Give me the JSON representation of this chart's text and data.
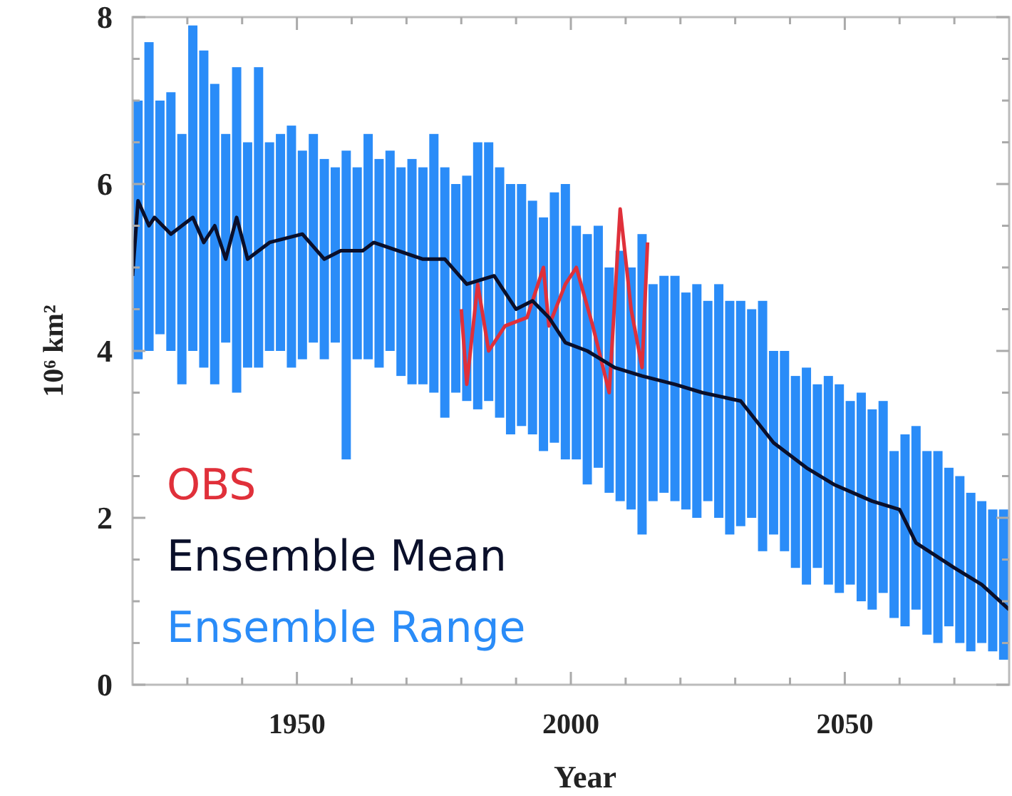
{
  "chart_data": {
    "type": "bar",
    "xlabel": "Year",
    "ylabel": "10⁶ km²",
    "xlim": [
      1920,
      2080
    ],
    "ylim": [
      0,
      8
    ],
    "xticks": [
      {
        "value": 1930,
        "label": null
      },
      {
        "value": 1940,
        "label": null
      },
      1950,
      {
        "value": 1960,
        "label": null
      },
      {
        "value": 1970,
        "label": null
      },
      {
        "value": 1980,
        "label": null
      },
      {
        "value": 1990,
        "label": null
      },
      2000,
      {
        "value": 2010,
        "label": null
      },
      {
        "value": 2020,
        "label": null
      },
      {
        "value": 2030,
        "label": null
      },
      {
        "value": 2040,
        "label": null
      },
      2050,
      {
        "value": 2060,
        "label": null
      },
      {
        "value": 2070,
        "label": null
      }
    ],
    "yticks": [
      0,
      {
        "value": 0.5,
        "label": null
      },
      {
        "value": 1,
        "label": null
      },
      {
        "value": 1.5,
        "label": null
      },
      2,
      {
        "value": 2.5,
        "label": null
      },
      {
        "value": 3,
        "label": null
      },
      {
        "value": 3.5,
        "label": null
      },
      4,
      {
        "value": 4.5,
        "label": null
      },
      {
        "value": 5,
        "label": null
      },
      {
        "value": 5.5,
        "label": null
      },
      6,
      {
        "value": 6.5,
        "label": null
      },
      {
        "value": 7,
        "label": null
      },
      {
        "value": 7.5,
        "label": null
      },
      8
    ],
    "grid": false,
    "legend": "bottom left",
    "series": [
      {
        "name": "OBS",
        "type": "line",
        "color": "#e0303a",
        "x": [
          1980,
          1981,
          1983,
          1985,
          1988,
          1992,
          1995,
          1996,
          1999,
          2001,
          2004,
          2007,
          2009,
          2011,
          2013,
          2014
        ],
        "values": [
          4.5,
          3.6,
          4.8,
          4.0,
          4.3,
          4.4,
          5.0,
          4.3,
          4.8,
          5.0,
          4.3,
          3.5,
          5.7,
          4.5,
          3.8,
          5.3
        ]
      },
      {
        "name": "Ensemble Mean",
        "type": "line",
        "color": "#0a0f2a",
        "x": [
          1920,
          1921,
          1923,
          1924,
          1927,
          1931,
          1933,
          1935,
          1937,
          1939,
          1941,
          1945,
          1951,
          1955,
          1958,
          1962,
          1964,
          1973,
          1977,
          1981,
          1986,
          1990,
          1993,
          1996,
          1999,
          2003,
          2008,
          2013,
          2019,
          2024,
          2031,
          2037,
          2043,
          2048,
          2055,
          2060,
          2063,
          2070,
          2075,
          2080
        ],
        "values": [
          4.9,
          5.8,
          5.5,
          5.6,
          5.4,
          5.6,
          5.3,
          5.5,
          5.1,
          5.6,
          5.1,
          5.3,
          5.4,
          5.1,
          5.2,
          5.2,
          5.3,
          5.1,
          5.1,
          4.8,
          4.9,
          4.5,
          4.6,
          4.4,
          4.1,
          4.0,
          3.8,
          3.7,
          3.6,
          3.5,
          3.4,
          2.9,
          2.6,
          2.4,
          2.2,
          2.1,
          1.7,
          1.4,
          1.2,
          0.9
        ]
      },
      {
        "name": "Ensemble Range",
        "color": "#2a8cf8",
        "x": [
          1921,
          1923,
          1925,
          1927,
          1929,
          1931,
          1933,
          1935,
          1937,
          1939,
          1941,
          1943,
          1945,
          1947,
          1949,
          1951,
          1953,
          1955,
          1957,
          1959,
          1961,
          1963,
          1965,
          1967,
          1969,
          1971,
          1973,
          1975,
          1977,
          1979,
          1981,
          1983,
          1985,
          1987,
          1989,
          1991,
          1993,
          1995,
          1997,
          1999,
          2001,
          2003,
          2005,
          2007,
          2009,
          2011,
          2013,
          2015,
          2017,
          2019,
          2021,
          2023,
          2025,
          2027,
          2029,
          2031,
          2033,
          2035,
          2037,
          2039,
          2041,
          2043,
          2045,
          2047,
          2049,
          2051,
          2053,
          2055,
          2057,
          2059,
          2061,
          2063,
          2065,
          2067,
          2069,
          2071,
          2073,
          2075,
          2077,
          2079
        ],
        "base": [
          3.9,
          4.0,
          4.2,
          4.0,
          3.6,
          4.0,
          3.8,
          3.6,
          4.1,
          3.5,
          3.8,
          3.8,
          4.0,
          4.0,
          3.8,
          3.9,
          4.1,
          3.9,
          4.1,
          2.7,
          3.9,
          3.9,
          3.8,
          4.0,
          3.7,
          3.6,
          3.6,
          3.5,
          3.2,
          3.5,
          3.4,
          3.3,
          3.4,
          3.2,
          3.0,
          3.1,
          3.0,
          2.8,
          2.9,
          2.7,
          2.7,
          2.4,
          2.6,
          2.3,
          2.2,
          2.1,
          1.8,
          2.2,
          2.3,
          2.2,
          2.1,
          2.0,
          2.2,
          2.0,
          1.8,
          1.9,
          2.0,
          1.6,
          1.8,
          1.6,
          1.4,
          1.2,
          1.4,
          1.2,
          1.1,
          1.2,
          1.0,
          0.9,
          1.1,
          0.8,
          0.7,
          0.9,
          0.6,
          0.5,
          0.7,
          0.5,
          0.4,
          0.5,
          0.4,
          0.3
        ],
        "values": [
          3.1,
          3.7,
          2.8,
          3.1,
          3.0,
          3.9,
          3.8,
          3.6,
          2.5,
          3.9,
          2.7,
          3.6,
          2.5,
          2.6,
          2.9,
          2.5,
          2.5,
          2.4,
          2.1,
          3.7,
          2.3,
          2.7,
          2.5,
          2.4,
          2.5,
          2.7,
          2.6,
          3.1,
          3.0,
          2.5,
          2.7,
          3.2,
          3.1,
          3.0,
          3.0,
          2.9,
          2.8,
          2.8,
          3.0,
          3.3,
          2.8,
          3.0,
          2.9,
          2.7,
          3.0,
          2.9,
          3.6,
          2.6,
          2.6,
          2.7,
          2.6,
          2.8,
          2.4,
          2.8,
          2.8,
          2.7,
          2.5,
          3.0,
          2.2,
          2.4,
          2.3,
          2.6,
          2.2,
          2.5,
          2.5,
          2.2,
          2.5,
          2.4,
          2.3,
          2.0,
          2.3,
          2.2,
          2.2,
          2.3,
          1.9,
          2.0,
          1.9,
          1.7,
          1.7,
          1.8
        ]
      }
    ]
  }
}
